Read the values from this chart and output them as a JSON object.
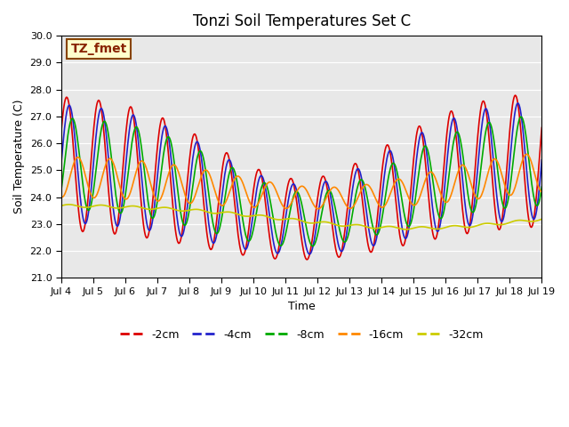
{
  "title": "Tonzi Soil Temperatures Set C",
  "xlabel": "Time",
  "ylabel": "Soil Temperature (C)",
  "ylim": [
    21.0,
    30.0
  ],
  "yticks": [
    21.0,
    22.0,
    23.0,
    24.0,
    25.0,
    26.0,
    27.0,
    28.0,
    29.0,
    30.0
  ],
  "xtick_labels": [
    "Jul 4",
    "Jul 5",
    "Jul 6",
    "Jul 7",
    "Jul 8",
    "Jul 9",
    "Jul 10",
    "Jul 11",
    "Jul 12",
    "Jul 13",
    "Jul 14",
    "Jul 15",
    "Jul 16",
    "Jul 17",
    "Jul 18",
    "Jul 19"
  ],
  "legend_labels": [
    "-2cm",
    "-4cm",
    "-8cm",
    "-16cm",
    "-32cm"
  ],
  "line_colors": [
    "#dd0000",
    "#2222cc",
    "#00aa00",
    "#ff8800",
    "#cccc00"
  ],
  "annotation_text": "TZ_fmet",
  "annotation_bg": "#ffffcc",
  "annotation_border": "#884400",
  "plot_bg": "#e8e8e8",
  "fig_bg": "#ffffff",
  "grid_color": "#ffffff"
}
